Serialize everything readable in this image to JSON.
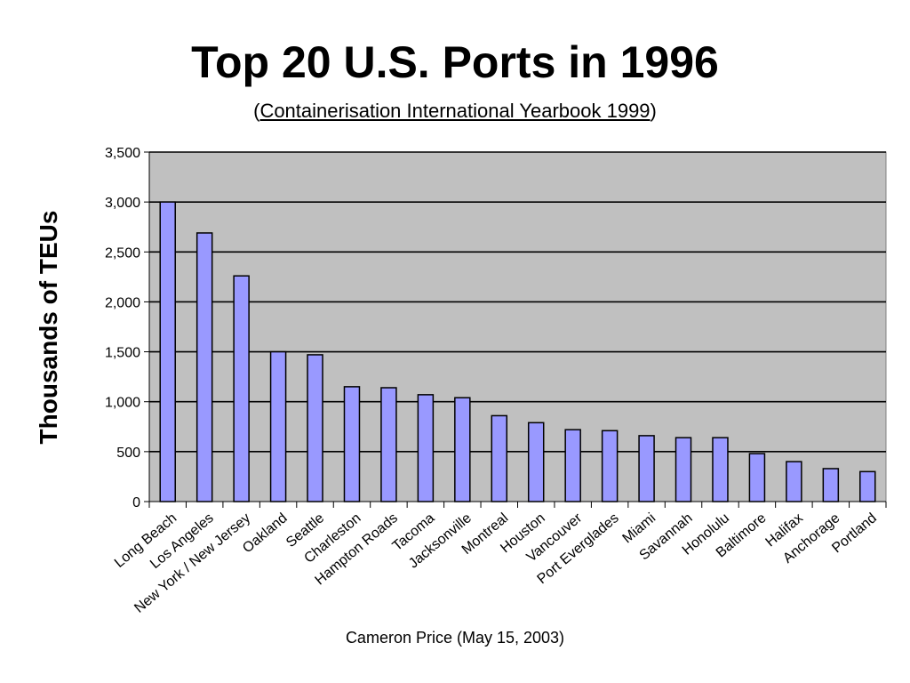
{
  "header": {
    "title": "Top 20 U.S. Ports in 1996",
    "subtitle_open": "(",
    "subtitle_source": "Containerisation International Yearbook 1999",
    "subtitle_close": ")"
  },
  "footer": {
    "credit": "Cameron Price (May 15, 2003)"
  },
  "colors": {
    "bar": "#9999ff",
    "plot_bg": "#c0c0c0",
    "grid": "#000000"
  },
  "chart_data": {
    "type": "bar",
    "title": "Top 20 U.S. Ports in 1996",
    "ylabel": "Thousands of TEUs",
    "xlabel": "",
    "ylim": [
      0,
      3500
    ],
    "yticks": [
      0,
      500,
      1000,
      1500,
      2000,
      2500,
      3000,
      3500
    ],
    "ytick_labels": [
      "0",
      "500",
      "1,000",
      "1,500",
      "2,000",
      "2,500",
      "3,000",
      "3,500"
    ],
    "grid": true,
    "legend": "none",
    "categories": [
      "Long Beach",
      "Los Angeles",
      "New York / New Jersey",
      "Oakland",
      "Seattle",
      "Charleston",
      "Hampton Roads",
      "Tacoma",
      "Jacksonville",
      "Montreal",
      "Houston",
      "Vancouver",
      "Port Everglades",
      "Miami",
      "Savannah",
      "Honolulu",
      "Baltimore",
      "Halifax",
      "Anchorage",
      "Portland"
    ],
    "values": [
      3000,
      2690,
      2260,
      1500,
      1470,
      1150,
      1140,
      1070,
      1040,
      860,
      790,
      720,
      710,
      660,
      640,
      640,
      480,
      400,
      330,
      300
    ]
  }
}
